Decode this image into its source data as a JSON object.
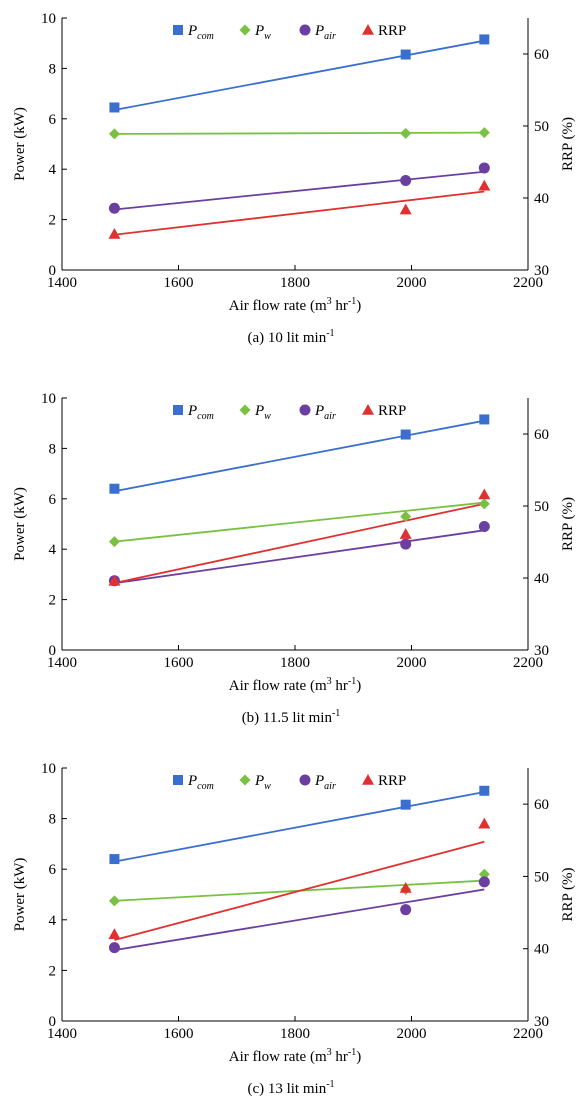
{
  "chart_data": [
    {
      "type": "scatter",
      "caption": "(a) 10 lit min",
      "caption_sup": "-1",
      "xlabel": "Air flow rate (m",
      "xlabel_sup1": "3",
      "xlabel_mid": " hr",
      "xlabel_sup2": "-1",
      "xlabel_end": ")",
      "ylabel": "Power (kW)",
      "y2label": "RRP (%)",
      "xlim": [
        1400,
        2200
      ],
      "ylim": [
        0,
        10
      ],
      "y2lim": [
        30,
        65
      ],
      "xticks": [
        "1400",
        "1600",
        "1800",
        "2000",
        "2200"
      ],
      "yticks": [
        "0",
        "2",
        "4",
        "6",
        "8",
        "10"
      ],
      "y2ticks": [
        "30",
        "40",
        "50",
        "60"
      ],
      "x": [
        1490,
        1990,
        2125
      ],
      "series": [
        {
          "name": "P",
          "sub": "com",
          "axis": "left",
          "marker": "square",
          "color": "#3a6fd0",
          "values": [
            6.45,
            8.55,
            9.15
          ],
          "fit": [
            [
              1490,
              6.35
            ],
            [
              2125,
              9.1
            ]
          ]
        },
        {
          "name": "P",
          "sub": "w",
          "axis": "left",
          "marker": "diamond",
          "color": "#7ac142",
          "values": [
            5.4,
            5.42,
            5.45
          ],
          "fit": [
            [
              1490,
              5.4
            ],
            [
              2125,
              5.45
            ]
          ]
        },
        {
          "name": "P",
          "sub": "air",
          "axis": "left",
          "marker": "circle",
          "color": "#6a3fa0",
          "values": [
            2.45,
            3.55,
            4.05
          ],
          "fit": [
            [
              1490,
              2.4
            ],
            [
              2125,
              3.9
            ]
          ]
        },
        {
          "name": "RRP",
          "sub": "",
          "axis": "right",
          "marker": "triangle",
          "color": "#e03030",
          "values": [
            35.0,
            38.4,
            41.7
          ],
          "fit": [
            [
              1490,
              34.9
            ],
            [
              2125,
              40.9
            ]
          ]
        }
      ]
    },
    {
      "type": "scatter",
      "caption": "(b) 11.5 lit min",
      "caption_sup": "-1",
      "xlabel": "Air flow rate (m",
      "xlabel_sup1": "3",
      "xlabel_mid": " hr",
      "xlabel_sup2": "-1",
      "xlabel_end": ")",
      "ylabel": "Power (kW)",
      "y2label": "RRP (%)",
      "xlim": [
        1400,
        2200
      ],
      "ylim": [
        0,
        10
      ],
      "y2lim": [
        30,
        65
      ],
      "xticks": [
        "1400",
        "1600",
        "1800",
        "2000",
        "2200"
      ],
      "yticks": [
        "0",
        "2",
        "4",
        "6",
        "8",
        "10"
      ],
      "y2ticks": [
        "30",
        "40",
        "50",
        "60"
      ],
      "x": [
        1490,
        1990,
        2125
      ],
      "series": [
        {
          "name": "P",
          "sub": "com",
          "axis": "left",
          "marker": "square",
          "color": "#3a6fd0",
          "values": [
            6.4,
            8.55,
            9.15
          ],
          "fit": [
            [
              1490,
              6.3
            ],
            [
              2125,
              9.1
            ]
          ]
        },
        {
          "name": "P",
          "sub": "w",
          "axis": "left",
          "marker": "diamond",
          "color": "#7ac142",
          "values": [
            4.3,
            5.3,
            5.8
          ],
          "fit": [
            [
              1490,
              4.3
            ],
            [
              2125,
              5.85
            ]
          ]
        },
        {
          "name": "P",
          "sub": "air",
          "axis": "left",
          "marker": "circle",
          "color": "#6a3fa0",
          "values": [
            2.75,
            4.2,
            4.9
          ],
          "fit": [
            [
              1490,
              2.65
            ],
            [
              2125,
              4.75
            ]
          ]
        },
        {
          "name": "RRP",
          "sub": "",
          "axis": "right",
          "marker": "triangle",
          "color": "#e03030",
          "values": [
            39.6,
            46.1,
            51.6
          ],
          "fit": [
            [
              1490,
              39.3
            ],
            [
              2125,
              50.3
            ]
          ]
        }
      ]
    },
    {
      "type": "scatter",
      "caption": "(c) 13 lit min",
      "caption_sup": "-1",
      "xlabel": "Air flow rate (m",
      "xlabel_sup1": "3",
      "xlabel_mid": " hr",
      "xlabel_sup2": "-1",
      "xlabel_end": ")",
      "ylabel": "Power (kW)",
      "y2label": "RRP (%)",
      "xlim": [
        1400,
        2200
      ],
      "ylim": [
        0,
        10
      ],
      "y2lim": [
        30,
        65
      ],
      "xticks": [
        "1400",
        "1600",
        "1800",
        "2000",
        "2200"
      ],
      "yticks": [
        "0",
        "2",
        "4",
        "6",
        "8",
        "10"
      ],
      "y2ticks": [
        "30",
        "40",
        "50",
        "60"
      ],
      "x": [
        1490,
        1990,
        2125
      ],
      "series": [
        {
          "name": "P",
          "sub": "com",
          "axis": "left",
          "marker": "square",
          "color": "#3a6fd0",
          "values": [
            6.4,
            8.55,
            9.1
          ],
          "fit": [
            [
              1490,
              6.3
            ],
            [
              2125,
              9.05
            ]
          ]
        },
        {
          "name": "P",
          "sub": "w",
          "axis": "left",
          "marker": "diamond",
          "color": "#7ac142",
          "values": [
            4.75,
            5.2,
            5.8
          ],
          "fit": [
            [
              1490,
              4.75
            ],
            [
              2125,
              5.55
            ]
          ]
        },
        {
          "name": "P",
          "sub": "air",
          "axis": "left",
          "marker": "circle",
          "color": "#6a3fa0",
          "values": [
            2.9,
            4.4,
            5.5
          ],
          "fit": [
            [
              1490,
              2.8
            ],
            [
              2125,
              5.2
            ]
          ]
        },
        {
          "name": "RRP",
          "sub": "",
          "axis": "right",
          "marker": "triangle",
          "color": "#e03030",
          "values": [
            42.0,
            48.4,
            57.3
          ],
          "fit": [
            [
              1490,
              41.2
            ],
            [
              2125,
              54.8
            ]
          ]
        }
      ]
    }
  ]
}
